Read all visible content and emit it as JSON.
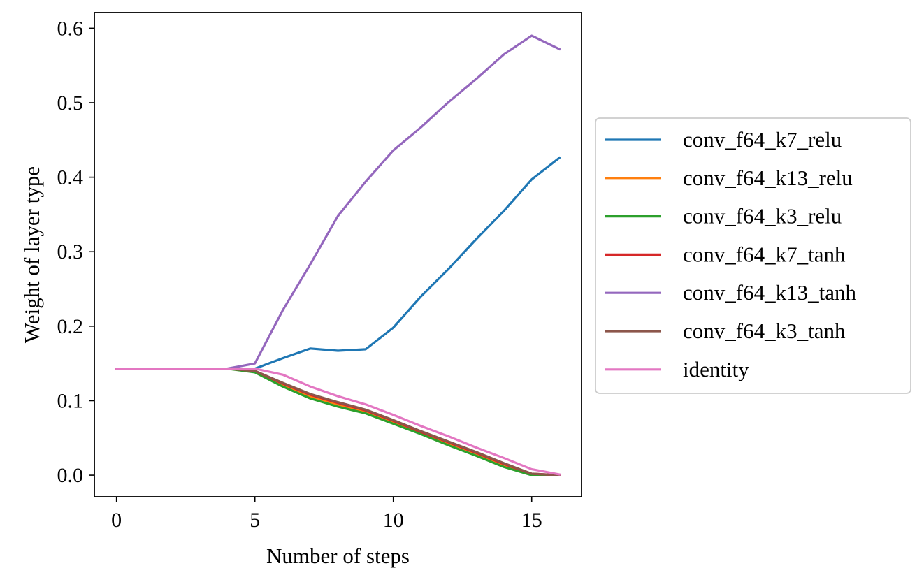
{
  "chart_data": {
    "type": "line",
    "xlabel": "Number of steps",
    "ylabel": "Weight of layer type",
    "xlim": [
      -0.8,
      16.8
    ],
    "ylim": [
      -0.029,
      0.621
    ],
    "x_ticks": [
      0,
      5,
      10,
      15
    ],
    "x_tick_labels": [
      "0",
      "5",
      "10",
      "15"
    ],
    "y_ticks": [
      0.0,
      0.1,
      0.2,
      0.3,
      0.4,
      0.5,
      0.6
    ],
    "y_tick_labels": [
      "0.0",
      "0.1",
      "0.2",
      "0.3",
      "0.4",
      "0.5",
      "0.6"
    ],
    "grid": false,
    "legend": "outside-right",
    "x": [
      0,
      1,
      2,
      3,
      4,
      5,
      6,
      7,
      8,
      9,
      10,
      11,
      12,
      13,
      14,
      15,
      16
    ],
    "series": [
      {
        "name": "conv_f64_k7_relu",
        "color": "#1f77b4",
        "values": [
          0.143,
          0.143,
          0.143,
          0.143,
          0.143,
          0.143,
          0.157,
          0.17,
          0.167,
          0.169,
          0.198,
          0.24,
          0.277,
          0.317,
          0.355,
          0.397,
          0.426
        ]
      },
      {
        "name": "conv_f64_k13_relu",
        "color": "#ff7f0e",
        "values": [
          0.143,
          0.143,
          0.143,
          0.143,
          0.143,
          0.139,
          0.121,
          0.106,
          0.095,
          0.085,
          0.071,
          0.057,
          0.043,
          0.029,
          0.014,
          0.001,
          0.0
        ]
      },
      {
        "name": "conv_f64_k3_relu",
        "color": "#2ca02c",
        "values": [
          0.143,
          0.143,
          0.143,
          0.143,
          0.143,
          0.138,
          0.119,
          0.103,
          0.092,
          0.083,
          0.069,
          0.055,
          0.04,
          0.026,
          0.011,
          0.0,
          0.0
        ]
      },
      {
        "name": "conv_f64_k7_tanh",
        "color": "#d62728",
        "values": [
          0.143,
          0.143,
          0.143,
          0.143,
          0.143,
          0.14,
          0.123,
          0.108,
          0.097,
          0.087,
          0.073,
          0.058,
          0.044,
          0.03,
          0.015,
          0.002,
          0.0
        ]
      },
      {
        "name": "conv_f64_k13_tanh",
        "color": "#9467bd",
        "values": [
          0.143,
          0.143,
          0.143,
          0.143,
          0.143,
          0.15,
          0.221,
          0.283,
          0.348,
          0.394,
          0.436,
          0.467,
          0.501,
          0.532,
          0.565,
          0.59,
          0.572
        ]
      },
      {
        "name": "conv_f64_k3_tanh",
        "color": "#8c564b",
        "values": [
          0.143,
          0.143,
          0.143,
          0.143,
          0.143,
          0.14,
          0.124,
          0.109,
          0.098,
          0.088,
          0.074,
          0.059,
          0.045,
          0.031,
          0.016,
          0.002,
          0.0
        ]
      },
      {
        "name": "identity",
        "color": "#e377c2",
        "values": [
          0.143,
          0.143,
          0.143,
          0.143,
          0.143,
          0.143,
          0.135,
          0.119,
          0.106,
          0.095,
          0.081,
          0.066,
          0.052,
          0.037,
          0.023,
          0.008,
          0.001
        ]
      }
    ]
  }
}
